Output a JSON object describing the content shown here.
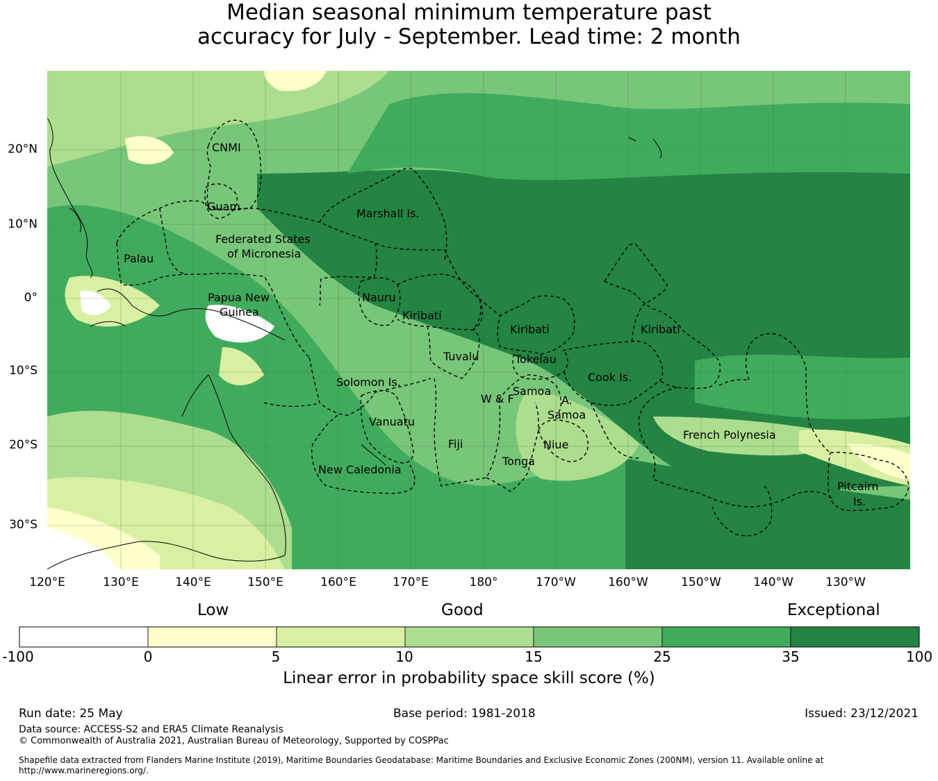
{
  "title": {
    "line1": "Median seasonal minimum temperature past",
    "line2": "accuracy for July - September. Lead time: 2 month"
  },
  "map": {
    "lat_ticks": [
      "20°N",
      "10°N",
      "0°",
      "10°S",
      "20°S",
      "30°S"
    ],
    "lon_ticks": [
      "120°E",
      "130°E",
      "140°E",
      "150°E",
      "160°E",
      "170°E",
      "180°",
      "170°W",
      "160°W",
      "150°W",
      "140°W",
      "130°W"
    ],
    "regions": [
      {
        "label": "CNMI"
      },
      {
        "label": "Guam"
      },
      {
        "label": "Marshall Is."
      },
      {
        "label": "Federated States"
      },
      {
        "label": "of Micronesia"
      },
      {
        "label": "Palau"
      },
      {
        "label": "Papua New"
      },
      {
        "label": "Guinea"
      },
      {
        "label": "Nauru"
      },
      {
        "label": "Kiribati"
      },
      {
        "label": "Kiribati"
      },
      {
        "label": "Kiribati"
      },
      {
        "label": "Tuvalu"
      },
      {
        "label": "Tokelau"
      },
      {
        "label": "Solomon Is."
      },
      {
        "label": "Cook Is."
      },
      {
        "label": "Samoa"
      },
      {
        "label": "A."
      },
      {
        "label": "Samoa"
      },
      {
        "label": "W & F"
      },
      {
        "label": "Vanuatu"
      },
      {
        "label": "Fiji"
      },
      {
        "label": "Niue"
      },
      {
        "label": "Tonga"
      },
      {
        "label": "French Polynesia"
      },
      {
        "label": "New Caledonia"
      },
      {
        "label": "Pitcairn"
      },
      {
        "label": "Is."
      }
    ]
  },
  "legend": {
    "categories": [
      "Low",
      "Good",
      "Exceptional"
    ],
    "ticks": [
      "-100",
      "0",
      "5",
      "10",
      "15",
      "25",
      "35",
      "100"
    ],
    "colors": [
      "#ffffff",
      "#ffffcc",
      "#d9f0a3",
      "#addd8e",
      "#78c679",
      "#41ab5d",
      "#238443"
    ],
    "label": "Linear error in probability space skill score (%)"
  },
  "footer": {
    "run_date": "Run date: 25 May",
    "base_period": "Base period: 1981-2018",
    "issued": "Issued: 23/12/2021",
    "data_source": "Data source: ACCESS-S2 and ERA5 Climate Reanalysis",
    "copyright": "© Commonwealth of Australia 2021, Australian Bureau of Meteorology, Supported by COSPPac",
    "shapefile": "Shapefile data extracted from Flanders Marine Institute (2019), Maritime Boundaries Geodatabase: Maritime Boundaries and Exclusive Economic Zones (200NM), version 11. Available online at http://www.marineregions.org/."
  }
}
